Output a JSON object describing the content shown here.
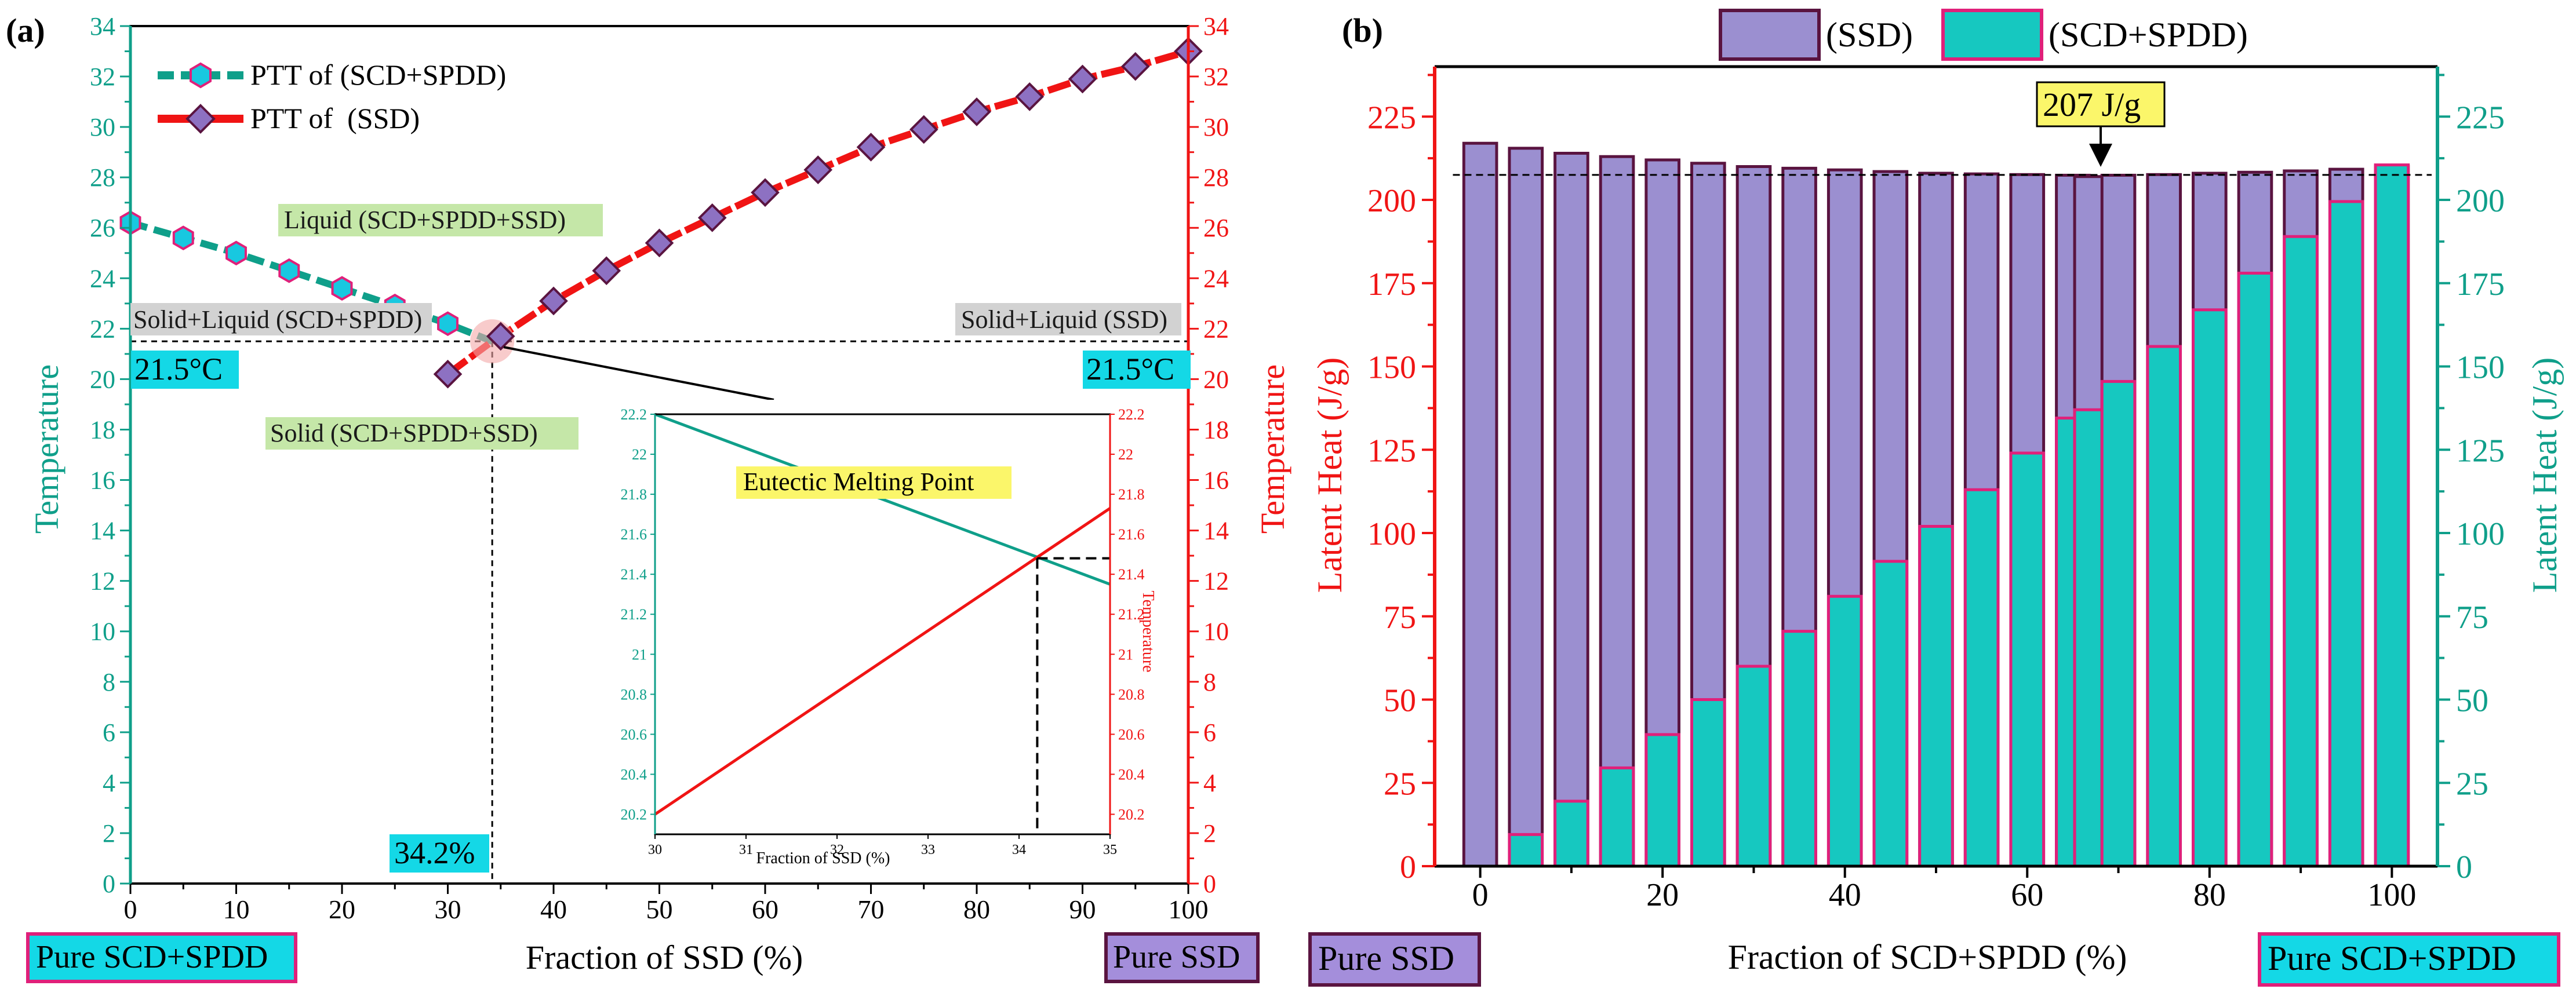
{
  "colors": {
    "teal": "#0f9f8a",
    "red": "#f01414",
    "purple_fill": "#9b8fd0",
    "purple_edge": "#5a1440",
    "cyan_fill": "#16c8c0",
    "cyan_edge": "#e0207a",
    "marker_cyan": "#18c8e0",
    "marker_purple": "#8d71c2",
    "green_box": "#c5e7a8",
    "gray_box": "#d2d2d2",
    "yellow_box": "#fbf66a",
    "cyan_box": "#14d8e6",
    "violet_box": "#a48edb"
  },
  "chart_data": [
    {
      "panel_label": "(a)",
      "type": "line",
      "xlabel": "Fraction of SSD (%)",
      "ylabel_left": "Temperature",
      "ylabel_right": "Temperature",
      "xlim": [
        0,
        100
      ],
      "ylim": [
        0,
        34
      ],
      "x_ticks": [
        0,
        10,
        20,
        30,
        40,
        50,
        60,
        70,
        80,
        90,
        100
      ],
      "y_ticks": [
        0,
        2,
        4,
        6,
        8,
        10,
        12,
        14,
        16,
        18,
        20,
        22,
        24,
        26,
        28,
        30,
        32,
        34
      ],
      "series": [
        {
          "name": "PTT of (SCD+SPDD)",
          "color": "teal",
          "marker": "hexagon",
          "x": [
            0,
            5,
            10,
            15,
            20,
            25,
            30,
            34.2
          ],
          "y": [
            26.2,
            25.6,
            25.0,
            24.3,
            23.6,
            22.9,
            22.2,
            21.5
          ]
        },
        {
          "name": "PTT of  (SSD)",
          "color": "red",
          "marker": "diamond",
          "x": [
            30,
            34.2,
            35,
            40,
            45,
            50,
            55,
            60,
            65,
            70,
            75,
            80,
            85,
            90,
            95,
            100
          ],
          "y": [
            20.2,
            21.5,
            21.7,
            23.1,
            24.3,
            25.4,
            26.4,
            27.4,
            28.3,
            29.2,
            29.9,
            30.6,
            31.2,
            31.9,
            32.4,
            33.0
          ]
        }
      ],
      "annotations": {
        "liquid": "Liquid (SCD+SPDD+SSD)",
        "solid_liquid_left": "Solid+Liquid (SCD+SPDD)",
        "solid_liquid_right": "Solid+Liquid (SSD)",
        "solid": "Solid (SCD+SPDD+SSD)",
        "temp_left": "21.5°C",
        "temp_right": "21.5°C",
        "eutectic_x_label": "34.2%",
        "eutectic_x": 34.2,
        "eutectic_y": 21.5,
        "bottom_left": "Pure SCD+SPDD",
        "bottom_right": "Pure SSD"
      },
      "inset": {
        "title": "Eutectic Melting Point",
        "xlabel": "Fraction of SSD (%)",
        "ylabel_right": "Temperature",
        "xlim": [
          30,
          35
        ],
        "ylim": [
          20.1,
          22.2
        ],
        "x_ticks": [
          30,
          31,
          32,
          33,
          34,
          35
        ],
        "y_ticks": [
          20.2,
          20.4,
          20.6,
          20.8,
          21,
          21.2,
          21.4,
          21.6,
          21.8,
          22,
          22.2
        ],
        "lines": [
          {
            "color": "teal",
            "x": [
              30,
              35
            ],
            "y": [
              22.2,
              21.35
            ]
          },
          {
            "color": "red",
            "x": [
              30,
              35
            ],
            "y": [
              20.2,
              21.73
            ]
          }
        ],
        "cross_x": 34.2,
        "cross_y": 21.48
      }
    },
    {
      "panel_label": "(b)",
      "type": "bar",
      "xlabel": "Fraction of SCD+SPDD (%)",
      "ylabel_left": "Latent Heat (J/g)",
      "ylabel_right": "Latent Heat (J/g)",
      "xlim": [
        -5,
        105
      ],
      "ylim": [
        0,
        240
      ],
      "x_ticks": [
        0,
        20,
        40,
        60,
        80,
        100
      ],
      "y_ticks": [
        0,
        25,
        50,
        75,
        100,
        125,
        150,
        175,
        200,
        225
      ],
      "x": [
        0,
        5,
        10,
        15,
        20,
        25,
        30,
        35,
        40,
        45,
        50,
        55,
        60,
        65,
        67,
        70,
        75,
        80,
        85,
        90,
        95,
        100
      ],
      "series": [
        {
          "name": "(SSD)",
          "values": [
            217,
            215.5,
            214,
            213,
            212,
            211,
            210,
            209.5,
            209,
            208.5,
            208,
            207.8,
            207.6,
            207.4,
            207,
            207.4,
            207.6,
            208,
            208.3,
            208.7,
            209.2,
            210
          ]
        },
        {
          "name": "(SCD+SPDD)",
          "values": [
            0,
            9.5,
            19.5,
            29.5,
            39.5,
            50,
            60,
            70.5,
            81,
            91.5,
            102,
            113,
            124,
            134.5,
            137,
            145.5,
            156,
            167,
            178,
            189,
            199.5,
            210.5
          ]
        }
      ],
      "reference_line": 207.5,
      "annotation_label": "207 J/g",
      "annotation_x": 67,
      "bottom_left": "Pure SSD",
      "bottom_right": "Pure SCD+SPDD"
    }
  ]
}
